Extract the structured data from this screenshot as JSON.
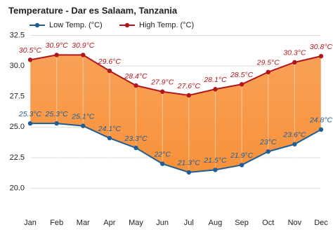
{
  "chart_data": {
    "type": "line",
    "title": "Temperature - Dar es Salaam, Tanzania",
    "categories": [
      "Jan",
      "Feb",
      "Mar",
      "Apr",
      "May",
      "Jun",
      "Jul",
      "Aug",
      "Sep",
      "Oct",
      "Nov",
      "Dec"
    ],
    "series": [
      {
        "name": "Low Temp. (°C)",
        "color": "#1f5e96",
        "values": [
          25.3,
          25.3,
          25.1,
          24.1,
          23.3,
          22,
          21.3,
          21.5,
          21.9,
          23,
          23.6,
          24.8
        ],
        "value_labels": [
          "25.3°C",
          "25.3°C",
          "25.1°C",
          "24.1°C",
          "23.3°C",
          "22°C",
          "21.3°C",
          "21.5°C",
          "21.9°C",
          "23°C",
          "23.6°C",
          "24.8°C"
        ]
      },
      {
        "name": "High Temp. (°C)",
        "color": "#b0171c",
        "values": [
          30.5,
          30.9,
          30.9,
          29.6,
          28.4,
          27.9,
          27.6,
          28.1,
          28.5,
          29.5,
          30.3,
          30.8
        ],
        "value_labels": [
          "30.5°C",
          "30.9°C",
          "30.9°C",
          "29.6°C",
          "28.4°C",
          "27.9°C",
          "27.6°C",
          "28.1°C",
          "28.5°C",
          "29.5°C",
          "30.3°C",
          "30.8°C"
        ]
      }
    ],
    "band_color": "#f7913a",
    "ylim": [
      18.2,
      33.1
    ],
    "yticks": [
      {
        "value": 20,
        "label": "20.0"
      },
      22.5,
      {
        "value": 25,
        "label": "25.0"
      },
      27.5,
      {
        "value": 30,
        "label": "30.0"
      },
      32.5
    ],
    "grid": true
  }
}
